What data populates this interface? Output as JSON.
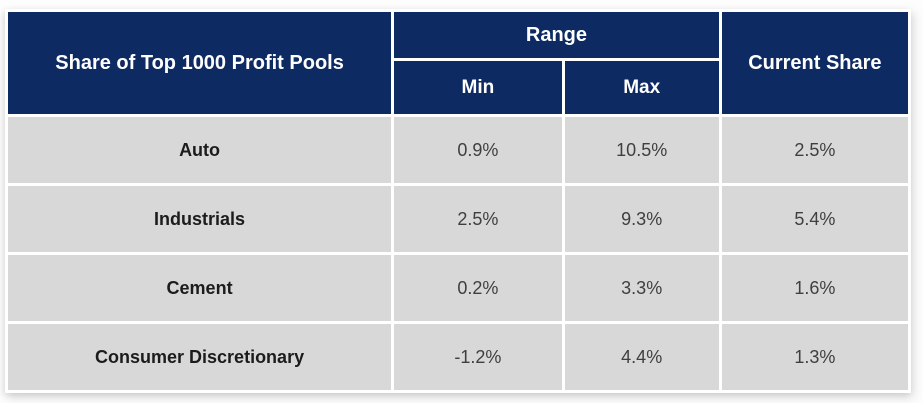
{
  "colors": {
    "header_bg": "#0e2a62",
    "header_text": "#ffffff",
    "row_bg": "#d8d8d8",
    "label_text": "#1c1c1c",
    "value_text": "#3f3f3f",
    "divider": "#ffffff",
    "page_bg": "#fdfdfd"
  },
  "table": {
    "corner_header": "Share of Top 1000 Profit Pools",
    "group_header": "Range",
    "sub_header_min": "Min",
    "sub_header_max": "Max",
    "current_share_header": "Current Share",
    "rows": [
      {
        "label": "Auto",
        "min": "0.9%",
        "max": "10.5%",
        "current": "2.5%"
      },
      {
        "label": "Industrials",
        "min": "2.5%",
        "max": "9.3%",
        "current": "5.4%"
      },
      {
        "label": "Cement",
        "min": "0.2%",
        "max": "3.3%",
        "current": "1.6%"
      },
      {
        "label": "Consumer Discretionary",
        "min": "-1.2%",
        "max": "4.4%",
        "current": "1.3%"
      }
    ]
  },
  "chart_data": {
    "type": "table",
    "title": "Share of Top 1000 Profit Pools",
    "column_groups": [
      {
        "label": "Range",
        "columns": [
          "Min",
          "Max"
        ]
      },
      {
        "label": "Current Share",
        "columns": [
          "Current Share"
        ]
      }
    ],
    "categories": [
      "Auto",
      "Industrials",
      "Cement",
      "Consumer Discretionary"
    ],
    "series": [
      {
        "name": "Range Min (%)",
        "values": [
          0.9,
          2.5,
          0.2,
          -1.2
        ]
      },
      {
        "name": "Range Max (%)",
        "values": [
          10.5,
          9.3,
          3.3,
          4.4
        ]
      },
      {
        "name": "Current Share (%)",
        "values": [
          2.5,
          5.4,
          1.6,
          1.3
        ]
      }
    ]
  }
}
